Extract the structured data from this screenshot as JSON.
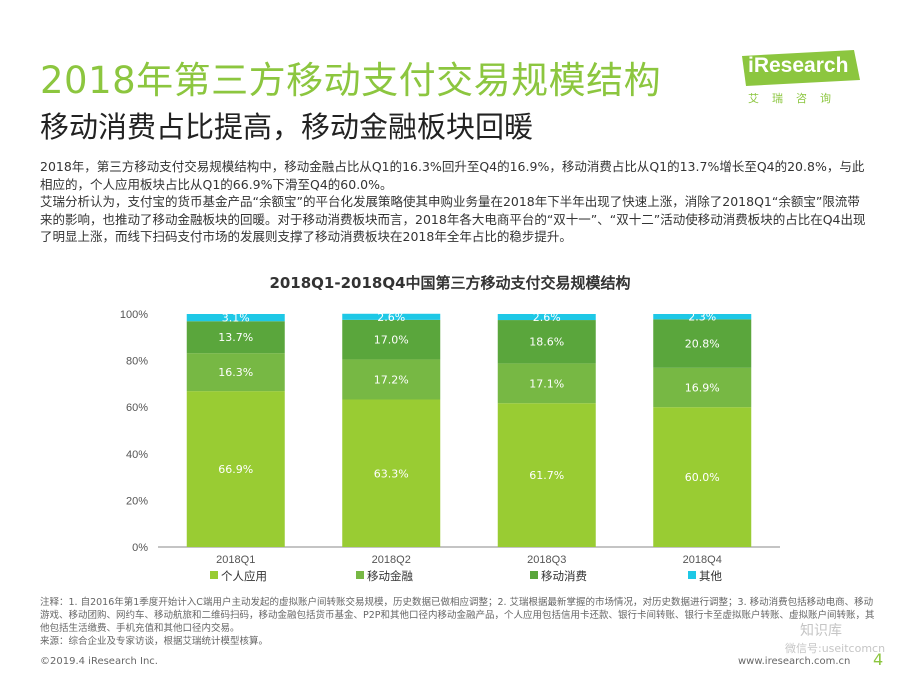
{
  "header": {
    "title": "2018年第三方移动支付交易规模结构",
    "subtitle": "移动消费占比提高，移动金融板块回暖",
    "logo_text": "iResearch",
    "logo_cn": "艾瑞咨询"
  },
  "paragraphs": [
    "2018年，第三方移动支付交易规模结构中，移动金融占比从Q1的16.3%回升至Q4的16.9%，移动消费占比从Q1的13.7%增长至Q4的20.8%，与此相应的，个人应用板块占比从Q1的66.9%下滑至Q4的60.0%。",
    "艾瑞分析认为，支付宝的货币基金产品“余额宝”的平台化发展策略使其申购业务量在2018年下半年出现了快速上涨，消除了2018Q1“余额宝”限流带来的影响，也推动了移动金融板块的回暖。对于移动消费板块而言，2018年各大电商平台的“双十一”、“双十二”活动使移动消费板块的占比在Q4出现了明显上涨，而线下扫码支付市场的发展则支撑了移动消费板块在2018年全年占比的稳步提升。"
  ],
  "chart_data": {
    "type": "bar",
    "stacked": true,
    "title": "2018Q1-2018Q4中国第三方移动支付交易规模结构",
    "categories": [
      "2018Q1",
      "2018Q2",
      "2018Q3",
      "2018Q4"
    ],
    "series": [
      {
        "name": "个人应用",
        "color": "#99cc33",
        "values": [
          66.9,
          63.3,
          61.7,
          60.0
        ],
        "labels": [
          "66.9%",
          "63.3%",
          "61.7%",
          "60.0%"
        ]
      },
      {
        "name": "移动金融",
        "color": "#77b844",
        "values": [
          16.3,
          17.2,
          17.1,
          16.9
        ],
        "labels": [
          "16.3%",
          "17.2%",
          "17.1%",
          "16.9%"
        ]
      },
      {
        "name": "移动消费",
        "color": "#5aa63c",
        "values": [
          13.7,
          17.0,
          18.6,
          20.8
        ],
        "labels": [
          "13.7%",
          "17.0%",
          "18.6%",
          "20.8%"
        ]
      },
      {
        "name": "其他",
        "color": "#1ec8e6",
        "values": [
          3.1,
          2.6,
          2.6,
          2.3
        ],
        "labels": [
          "3.1%",
          "2.6%",
          "2.6%",
          "2.3%"
        ]
      }
    ],
    "y_ticks": [
      "0%",
      "20%",
      "40%",
      "60%",
      "80%",
      "100%"
    ],
    "ylim": [
      0,
      100
    ],
    "legend": "bottom"
  },
  "notes": [
    "注释：1. 自2016年第1季度开始计入C端用户主动发起的虚拟账户间转账交易规模，历史数据已做相应调整；2. 艾瑞根据最新掌握的市场情况，对历史数据进行调整；3. 移动消费包括移动电商、移动游戏、移动团购、网约车、移动航旅和二维码扫码，移动金融包括货币基金、P2P和其他口径内移动金融产品，个人应用包括信用卡还款、银行卡间转账、银行卡至虚拟账户转账、虚拟账户间转账，其他包括生活缴费、手机充值和其他口径内交易。",
    "来源：综合企业及专家访谈，根据艾瑞统计模型核算。"
  ],
  "footer": {
    "copyright": "©2019.4 iResearch Inc.",
    "website": "www.iresearch.com.cn",
    "page": "4"
  },
  "watermark": {
    "line1": "知识库",
    "line2": "微信号:useitcomcn"
  }
}
